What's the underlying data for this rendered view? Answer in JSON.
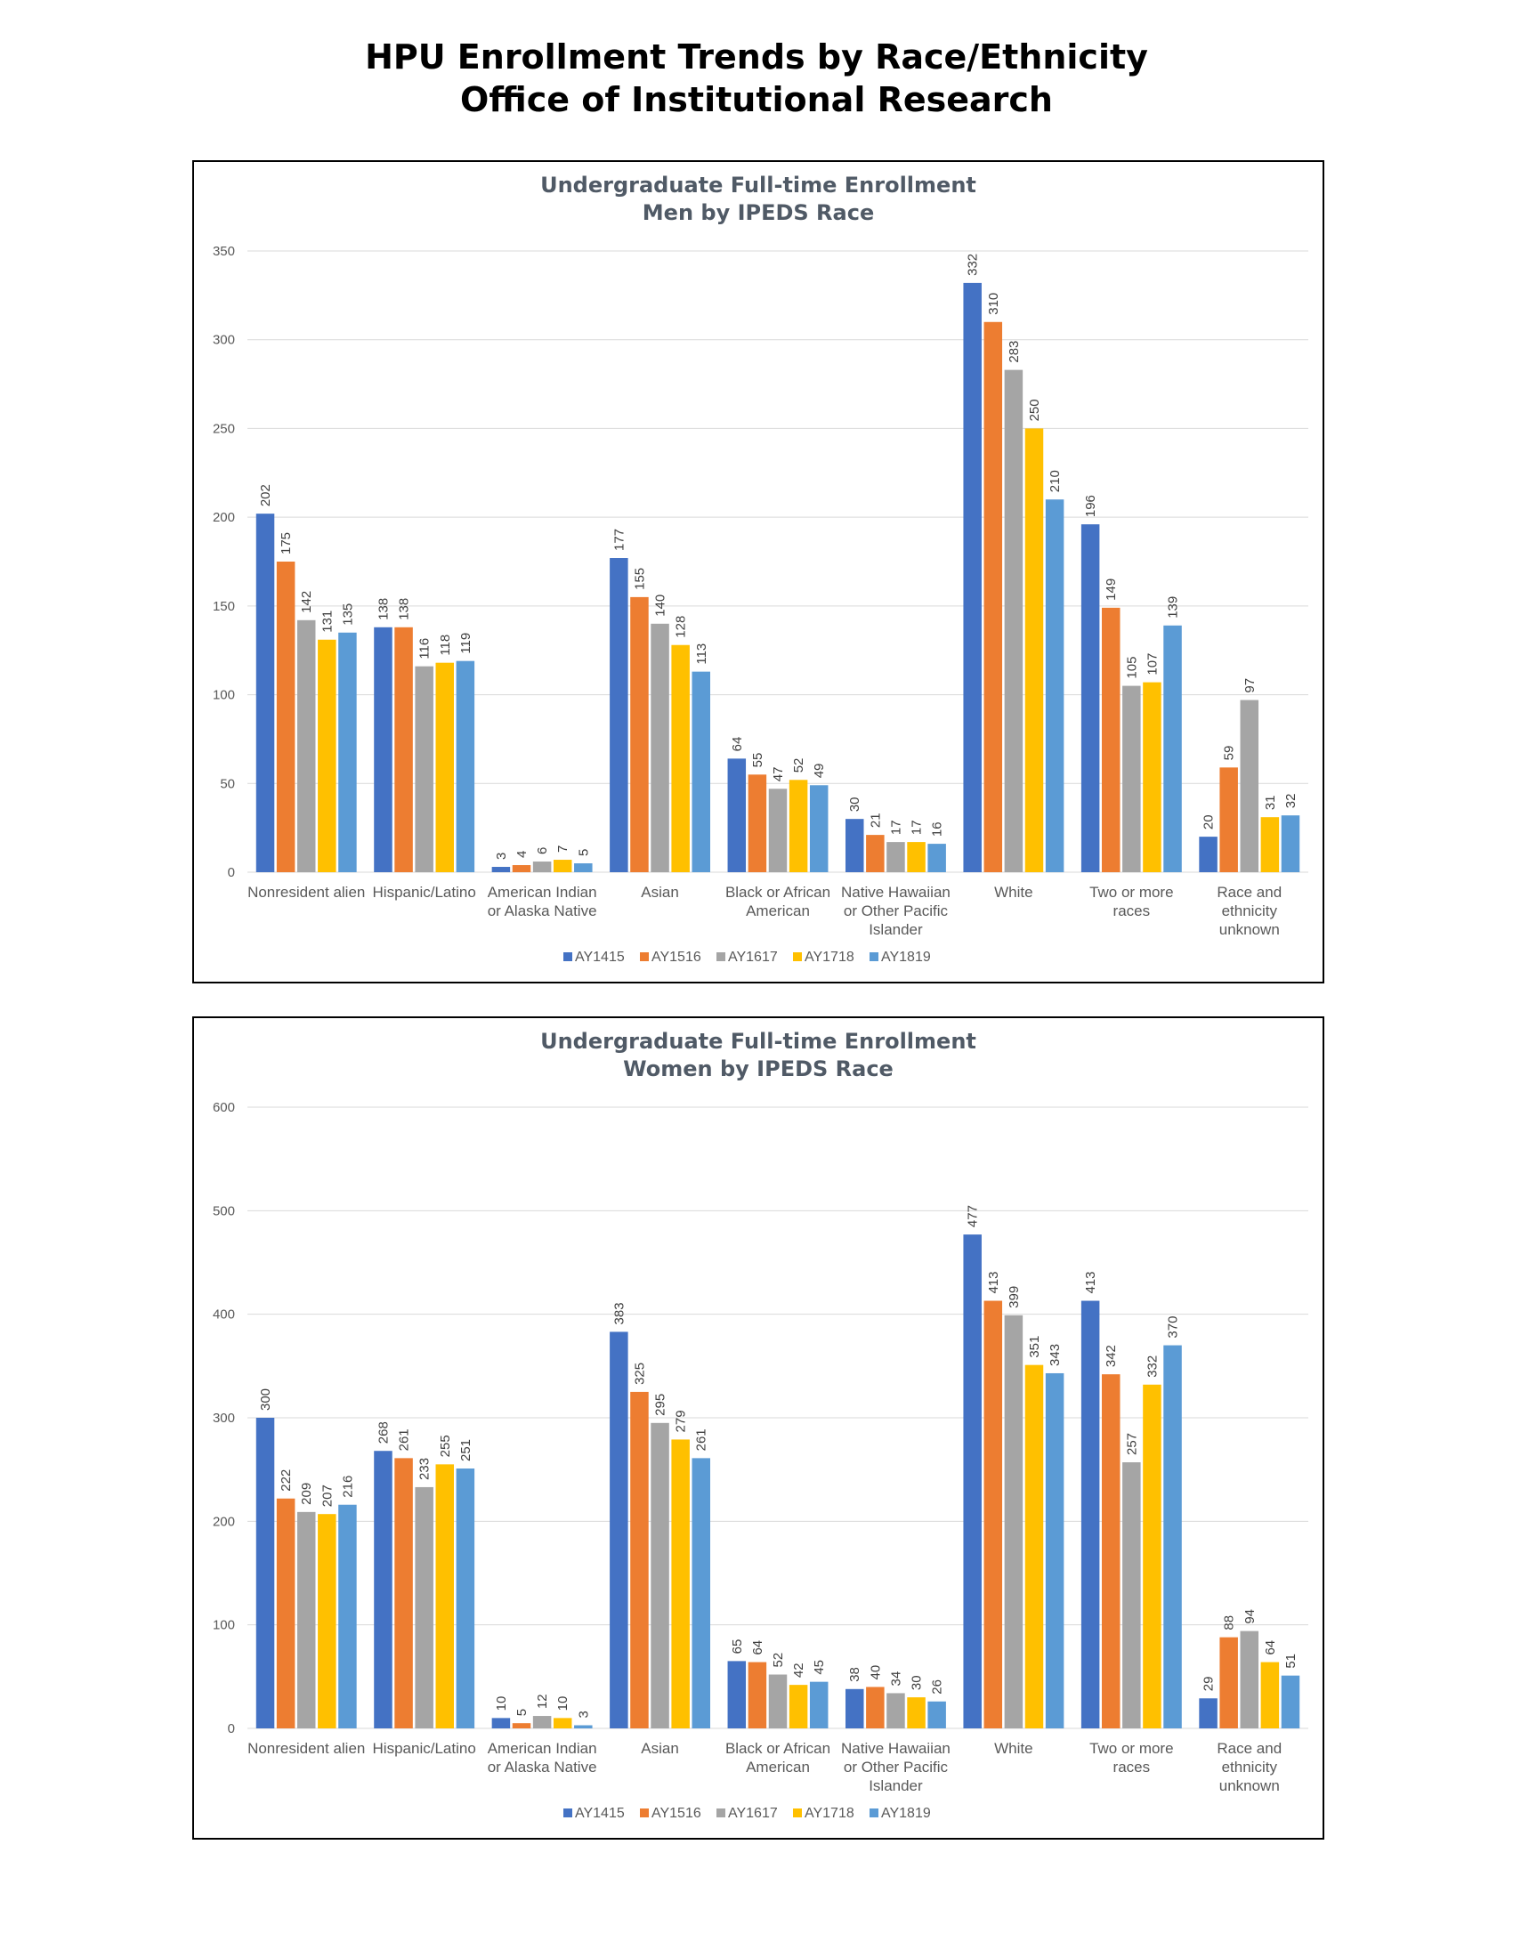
{
  "page": {
    "title_line1": "HPU Enrollment Trends by Race/Ethnicity",
    "title_line2": "Office of Institutional Research"
  },
  "colors": {
    "AY1415": "#4472c4",
    "AY1516": "#ed7d31",
    "AY1617": "#a5a5a5",
    "AY1718": "#ffc000",
    "AY1819": "#5b9bd5",
    "gridline": "#d9d9d9"
  },
  "chart_data": [
    {
      "type": "bar",
      "title": "Undergraduate Full-time Enrollment",
      "subtitle": "Men by IPEDS Race",
      "categories": [
        "Nonresident alien",
        "Hispanic/Latino",
        "American Indian or Alaska Native",
        "Asian",
        "Black or African American",
        "Native Hawaiian or Other Pacific Islander",
        "White",
        "Two or more races",
        "Race and ethnicity unknown"
      ],
      "category_label_lines": [
        [
          "Nonresident alien"
        ],
        [
          "Hispanic/Latino"
        ],
        [
          "American Indian",
          "or Alaska Native"
        ],
        [
          "Asian"
        ],
        [
          "Black or African",
          "American"
        ],
        [
          "Native Hawaiian",
          "or Other Pacific",
          "Islander"
        ],
        [
          "White"
        ],
        [
          "Two or more",
          "races"
        ],
        [
          "Race and",
          "ethnicity",
          "unknown"
        ]
      ],
      "series": [
        {
          "name": "AY1415",
          "values": [
            202,
            138,
            3,
            177,
            64,
            30,
            332,
            196,
            20
          ]
        },
        {
          "name": "AY1516",
          "values": [
            175,
            138,
            4,
            155,
            55,
            21,
            310,
            149,
            59
          ]
        },
        {
          "name": "AY1617",
          "values": [
            142,
            116,
            6,
            140,
            47,
            17,
            283,
            105,
            97
          ]
        },
        {
          "name": "AY1718",
          "values": [
            131,
            118,
            7,
            128,
            52,
            17,
            250,
            107,
            31
          ]
        },
        {
          "name": "AY1819",
          "values": [
            135,
            119,
            5,
            113,
            49,
            16,
            210,
            139,
            32
          ]
        }
      ],
      "ylim": [
        0,
        350
      ],
      "yticks": [
        0,
        50,
        100,
        150,
        200,
        250,
        300,
        350
      ],
      "grid": true,
      "legend_position": "bottom"
    },
    {
      "type": "bar",
      "title": "Undergraduate Full-time Enrollment",
      "subtitle": "Women by IPEDS Race",
      "categories": [
        "Nonresident alien",
        "Hispanic/Latino",
        "American Indian or Alaska Native",
        "Asian",
        "Black or African American",
        "Native Hawaiian or Other Pacific Islander",
        "White",
        "Two or more races",
        "Race and ethnicity unknown"
      ],
      "category_label_lines": [
        [
          "Nonresident alien"
        ],
        [
          "Hispanic/Latino"
        ],
        [
          "American Indian",
          "or Alaska Native"
        ],
        [
          "Asian"
        ],
        [
          "Black or African",
          "American"
        ],
        [
          "Native Hawaiian",
          "or Other Pacific",
          "Islander"
        ],
        [
          "White"
        ],
        [
          "Two or more",
          "races"
        ],
        [
          "Race and",
          "ethnicity",
          "unknown"
        ]
      ],
      "series": [
        {
          "name": "AY1415",
          "values": [
            300,
            268,
            10,
            383,
            65,
            38,
            477,
            413,
            29
          ]
        },
        {
          "name": "AY1516",
          "values": [
            222,
            261,
            5,
            325,
            64,
            40,
            413,
            342,
            88
          ]
        },
        {
          "name": "AY1617",
          "values": [
            209,
            233,
            12,
            295,
            52,
            34,
            399,
            257,
            94
          ]
        },
        {
          "name": "AY1718",
          "values": [
            207,
            255,
            10,
            279,
            42,
            30,
            351,
            332,
            64
          ]
        },
        {
          "name": "AY1819",
          "values": [
            216,
            251,
            3,
            261,
            45,
            26,
            343,
            370,
            51
          ]
        }
      ],
      "ylim": [
        0,
        600
      ],
      "yticks": [
        0,
        100,
        200,
        300,
        400,
        500,
        600
      ],
      "grid": true,
      "legend_position": "bottom"
    }
  ]
}
